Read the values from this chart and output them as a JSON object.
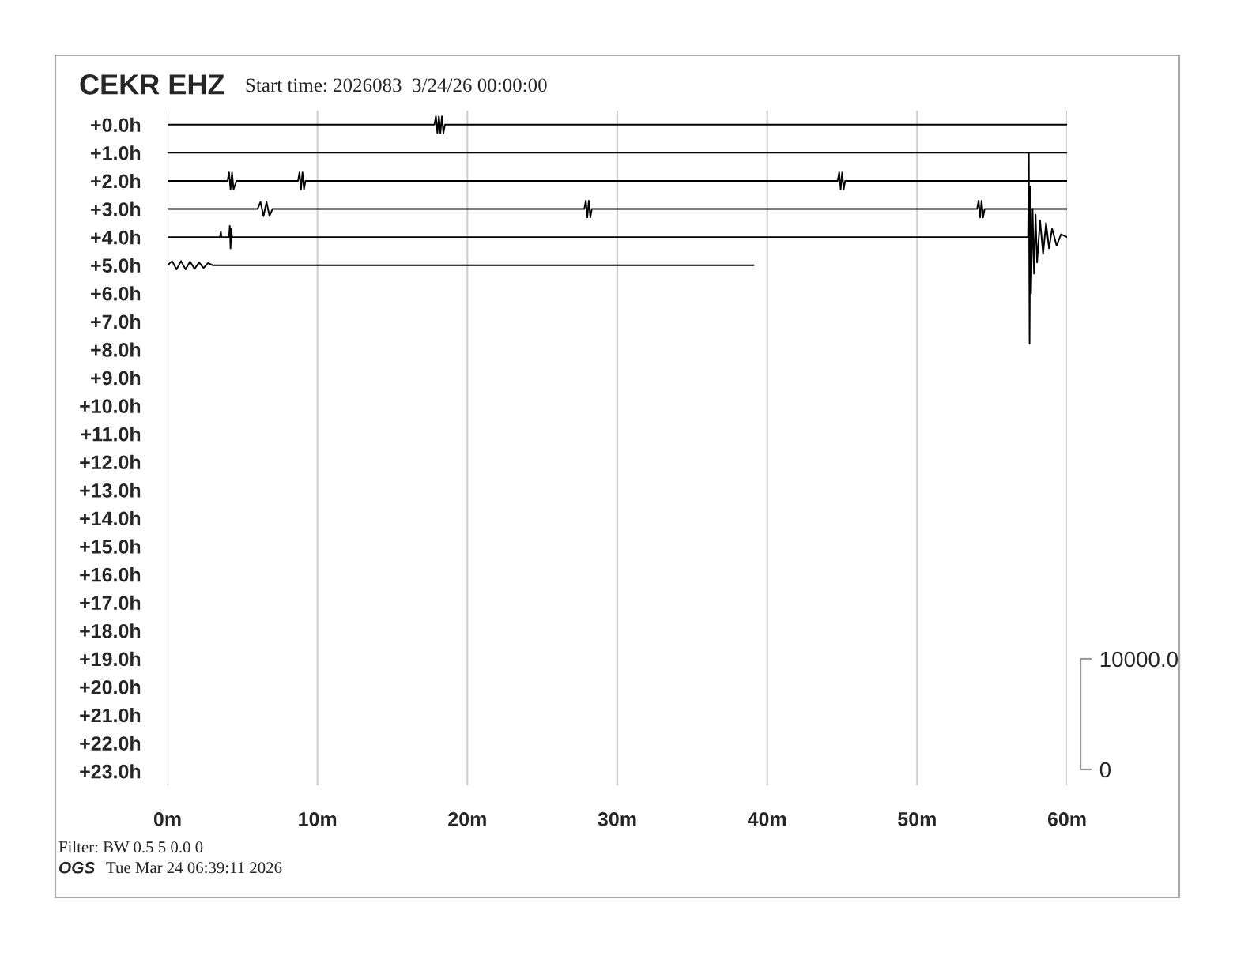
{
  "chart_data": {
    "type": "line",
    "title": "CEKR EHZ",
    "subtitle": "Start time: 2026083  3/24/26 00:00:00",
    "annotations": [
      "Filter: BW 0.5 5 0.0 0",
      "OGS",
      "Tue Mar 24 06:39:11 2026"
    ],
    "xlim": [
      0,
      60
    ],
    "xticks": [
      {
        "value": 0,
        "label": "0m"
      },
      {
        "value": 10,
        "label": "10m"
      },
      {
        "value": 20,
        "label": "20m"
      },
      {
        "value": 30,
        "label": "30m"
      },
      {
        "value": 40,
        "label": "40m"
      },
      {
        "value": 50,
        "label": "50m"
      },
      {
        "value": 60,
        "label": "60m"
      }
    ],
    "ylim": [
      23.5,
      -0.5
    ],
    "yticks": [
      {
        "value": 0,
        "label": "+0.0h"
      },
      {
        "value": 1,
        "label": "+1.0h"
      },
      {
        "value": 2,
        "label": "+2.0h"
      },
      {
        "value": 3,
        "label": "+3.0h"
      },
      {
        "value": 4,
        "label": "+4.0h"
      },
      {
        "value": 5,
        "label": "+5.0h"
      },
      {
        "value": 6,
        "label": "+6.0h"
      },
      {
        "value": 7,
        "label": "+7.0h"
      },
      {
        "value": 8,
        "label": "+8.0h"
      },
      {
        "value": 9,
        "label": "+9.0h"
      },
      {
        "value": 10,
        "label": "+10.0h"
      },
      {
        "value": 11,
        "label": "+11.0h"
      },
      {
        "value": 12,
        "label": "+12.0h"
      },
      {
        "value": 13,
        "label": "+13.0h"
      },
      {
        "value": 14,
        "label": "+14.0h"
      },
      {
        "value": 15,
        "label": "+15.0h"
      },
      {
        "value": 16,
        "label": "+16.0h"
      },
      {
        "value": 17,
        "label": "+17.0h"
      },
      {
        "value": 18,
        "label": "+18.0h"
      },
      {
        "value": 19,
        "label": "+19.0h"
      },
      {
        "value": 20,
        "label": "+20.0h"
      },
      {
        "value": 21,
        "label": "+21.0h"
      },
      {
        "value": 22,
        "label": "+22.0h"
      },
      {
        "value": 23,
        "label": "+23.0h"
      }
    ],
    "y2lim": [
      -1430,
      59570
    ],
    "y2ticks": [
      {
        "value": 0,
        "label": "0"
      },
      {
        "value": 10000,
        "label": "10000.0"
      }
    ],
    "grid": "x",
    "legend": false,
    "series": [
      {
        "color": "#000000",
        "x": [
          0,
          17.8,
          17.9,
          18.0,
          18.1,
          18.2,
          18.3,
          18.4,
          18.5,
          60
        ],
        "values": [
          0,
          0,
          -0.3,
          0.3,
          -0.3,
          0.3,
          -0.3,
          0.3,
          0,
          0
        ]
      },
      {
        "color": "#000000",
        "x": [
          0,
          60
        ],
        "values": [
          1,
          1
        ]
      },
      {
        "color": "#000000",
        "x": [
          0,
          4.0,
          4.1,
          4.2,
          4.3,
          4.4,
          4.6,
          8.7,
          8.8,
          8.9,
          9.0,
          9.1,
          9.2,
          44.7,
          44.8,
          44.9,
          45.0,
          45.1,
          45.2,
          60
        ],
        "values": [
          2,
          2,
          1.7,
          2.3,
          1.7,
          2.3,
          2,
          2,
          1.7,
          2.3,
          1.7,
          2.3,
          2,
          2,
          1.7,
          2.3,
          1.7,
          2.3,
          2,
          2
        ]
      },
      {
        "color": "#000000",
        "x": [
          0,
          6.0,
          6.2,
          6.4,
          6.6,
          6.8,
          7.0,
          27.8,
          27.9,
          28.0,
          28.1,
          28.2,
          28.3,
          54.0,
          54.1,
          54.2,
          54.3,
          54.4,
          54.5,
          60
        ],
        "values": [
          3,
          3,
          2.75,
          3.25,
          2.75,
          3.25,
          3,
          3,
          2.7,
          3.3,
          2.7,
          3.3,
          3,
          3,
          2.7,
          3.3,
          2.7,
          3.3,
          3,
          3
        ]
      },
      {
        "color": "#000000",
        "x": [
          0,
          3.5,
          3.55,
          3.6,
          4.1,
          4.15,
          4.2,
          4.25,
          4.3,
          57.4,
          57.45,
          57.5,
          57.55,
          57.6,
          57.7,
          57.8,
          57.9,
          58.0,
          58.2,
          58.4,
          58.6,
          58.8,
          59.0,
          59.3,
          59.6,
          60
        ],
        "values": [
          4,
          4,
          3.8,
          4,
          4,
          3.6,
          4.4,
          3.7,
          4,
          4,
          1.0,
          7.8,
          2.2,
          6.0,
          3.0,
          5.3,
          3.2,
          4.9,
          3.4,
          4.6,
          3.5,
          4.4,
          3.7,
          4.3,
          3.9,
          4
        ]
      },
      {
        "color": "#000000",
        "x": [
          0,
          0.3,
          0.6,
          0.9,
          1.2,
          1.5,
          1.8,
          2.1,
          2.4,
          2.7,
          3.0,
          39.1
        ],
        "values": [
          5,
          4.85,
          5.15,
          4.85,
          5.15,
          4.87,
          5.13,
          4.9,
          5.1,
          4.92,
          5,
          5
        ]
      }
    ]
  }
}
